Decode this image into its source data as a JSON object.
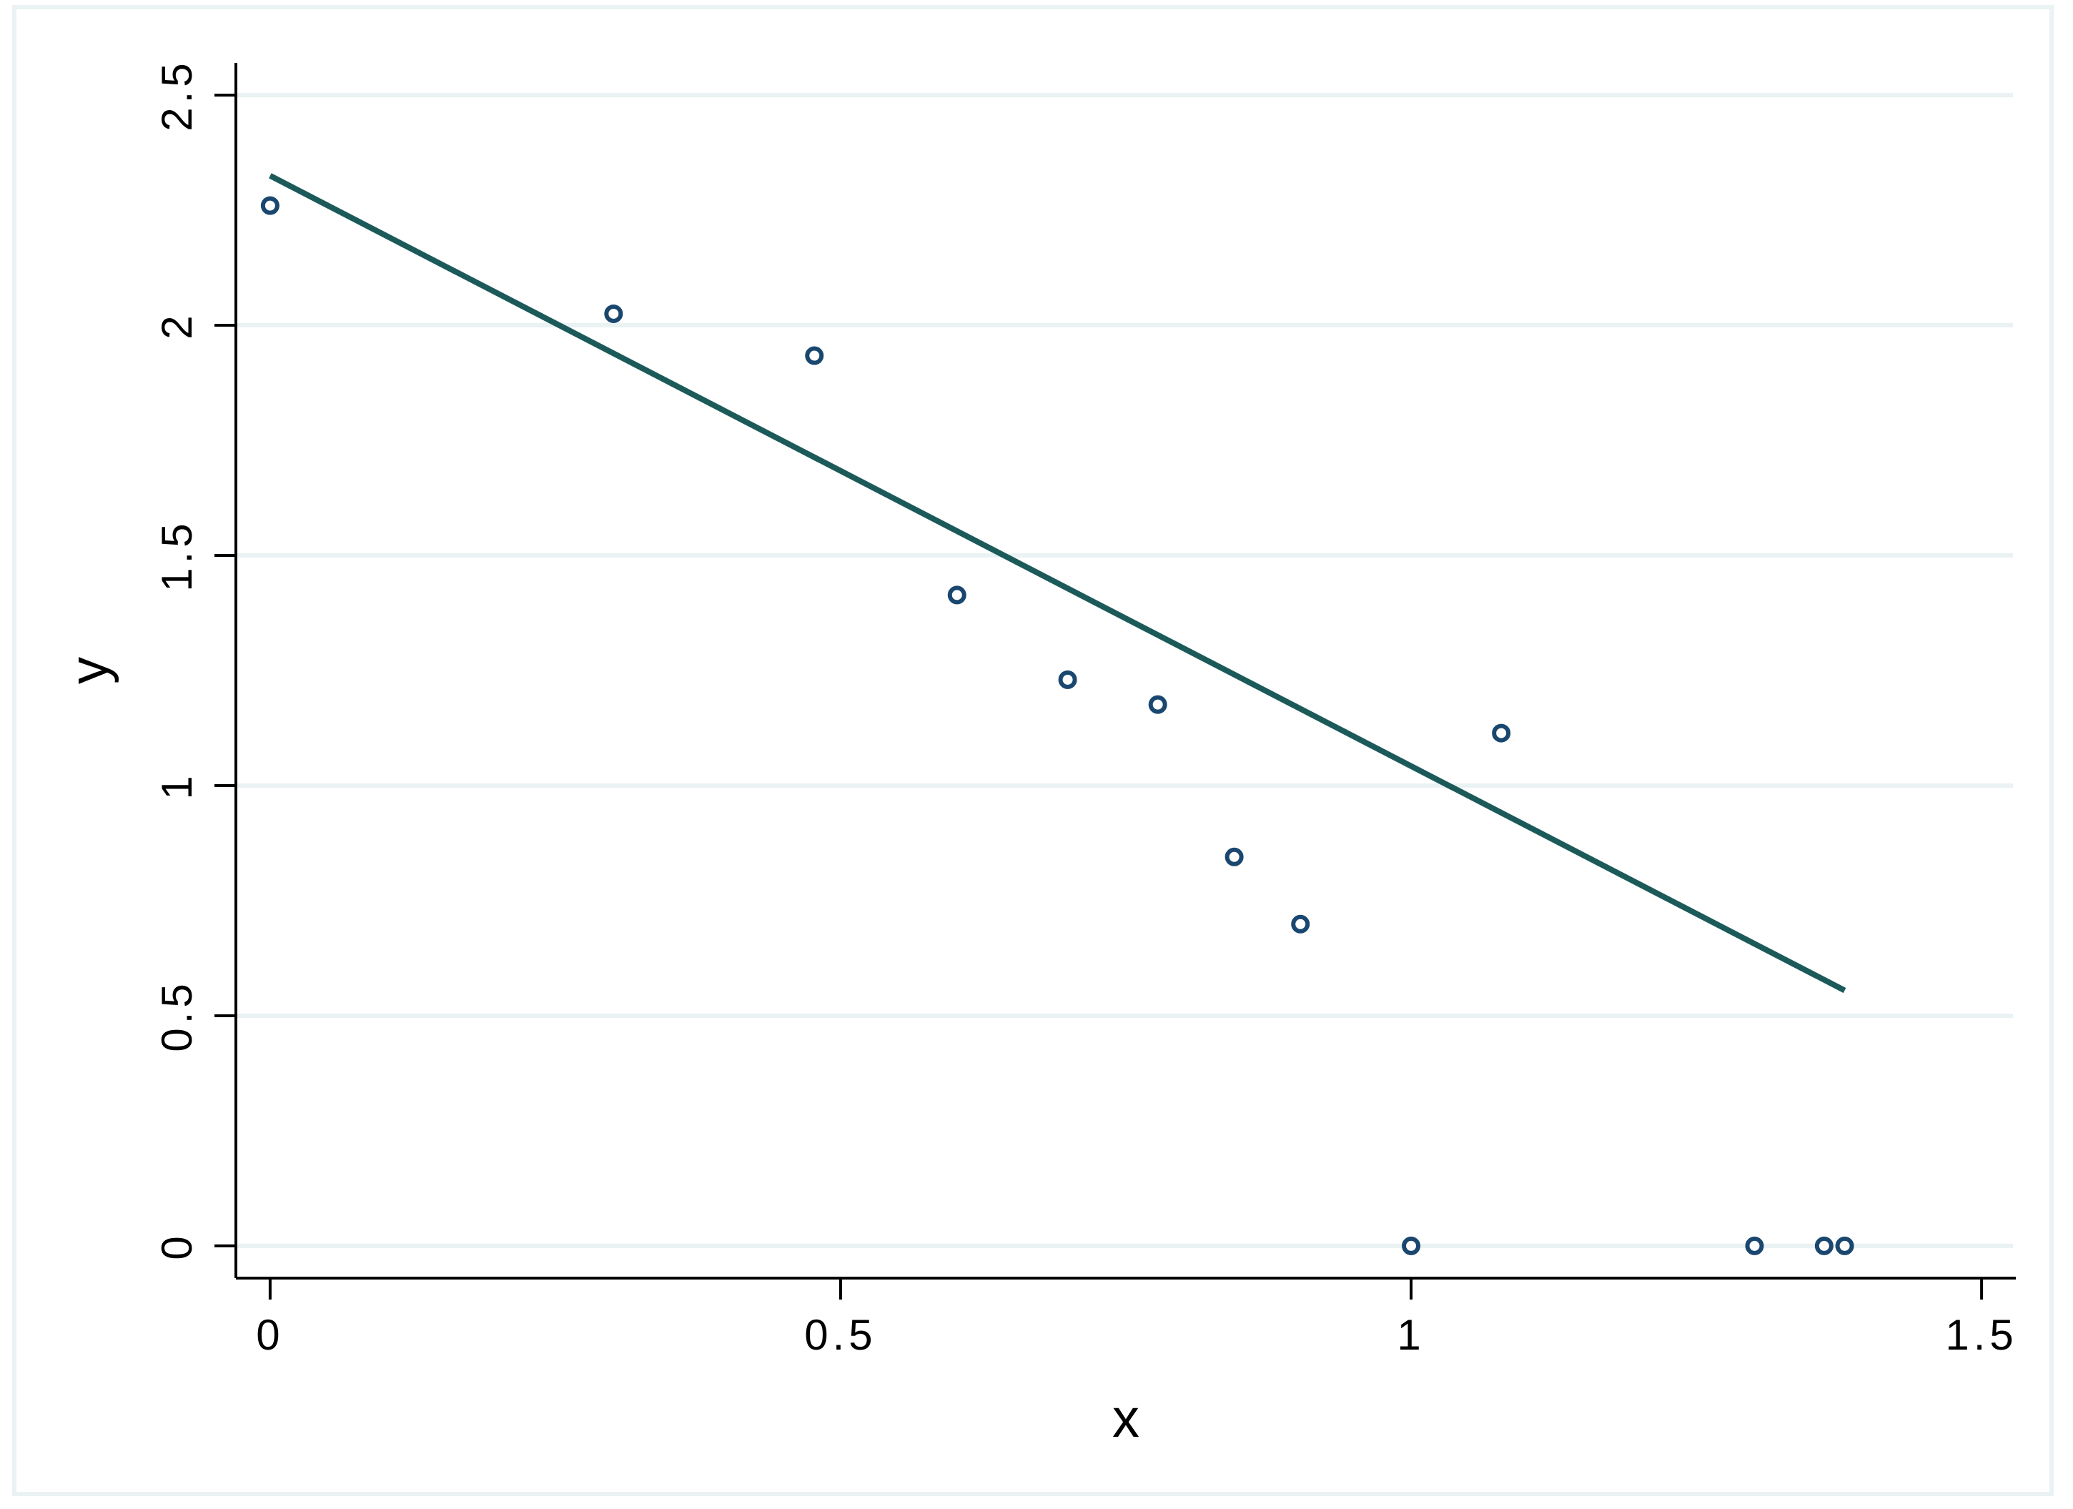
{
  "chart_data": {
    "type": "scatter",
    "title": "",
    "xlabel": "x",
    "ylabel": "y",
    "xlim": [
      -0.03,
      1.53
    ],
    "ylim": [
      -0.07,
      2.57
    ],
    "x_ticks": [
      {
        "value": 0,
        "label": "0"
      },
      {
        "value": 0.5,
        "label": "0.5"
      },
      {
        "value": 1,
        "label": "1"
      },
      {
        "value": 1.5,
        "label": "1.5"
      }
    ],
    "y_ticks": [
      {
        "value": 0,
        "label": "0"
      },
      {
        "value": 0.5,
        "label": "0.5"
      },
      {
        "value": 1,
        "label": "1"
      },
      {
        "value": 1.5,
        "label": "1.5"
      },
      {
        "value": 2,
        "label": "2"
      },
      {
        "value": 2.5,
        "label": "2.5"
      }
    ],
    "grid": "horizontal",
    "legend": "none",
    "series": [
      {
        "type": "scatter",
        "marker": "hollow-circle",
        "color": "#1a476f",
        "points": [
          {
            "x": 0,
            "y": 2.26
          },
          {
            "x": 0.301,
            "y": 2.025
          },
          {
            "x": 0.477,
            "y": 1.934
          },
          {
            "x": 0.602,
            "y": 1.414
          },
          {
            "x": 0.699,
            "y": 1.23
          },
          {
            "x": 0.778,
            "y": 1.176
          },
          {
            "x": 0.845,
            "y": 0.845
          },
          {
            "x": 0.903,
            "y": 0.699
          },
          {
            "x": 1.0,
            "y": 0
          },
          {
            "x": 1.079,
            "y": 1.114
          },
          {
            "x": 1.301,
            "y": 0
          },
          {
            "x": 1.362,
            "y": 0
          },
          {
            "x": 1.38,
            "y": 0
          }
        ]
      },
      {
        "type": "line",
        "color": "#1c5a5a",
        "points": [
          {
            "x": 0,
            "y": 2.325
          },
          {
            "x": 1.38,
            "y": 0.555
          }
        ]
      }
    ],
    "colors": {
      "background": "#ffffff",
      "frame": "#eaf2f3",
      "gridline": "#eaf2f3",
      "axis": "#000000"
    }
  }
}
